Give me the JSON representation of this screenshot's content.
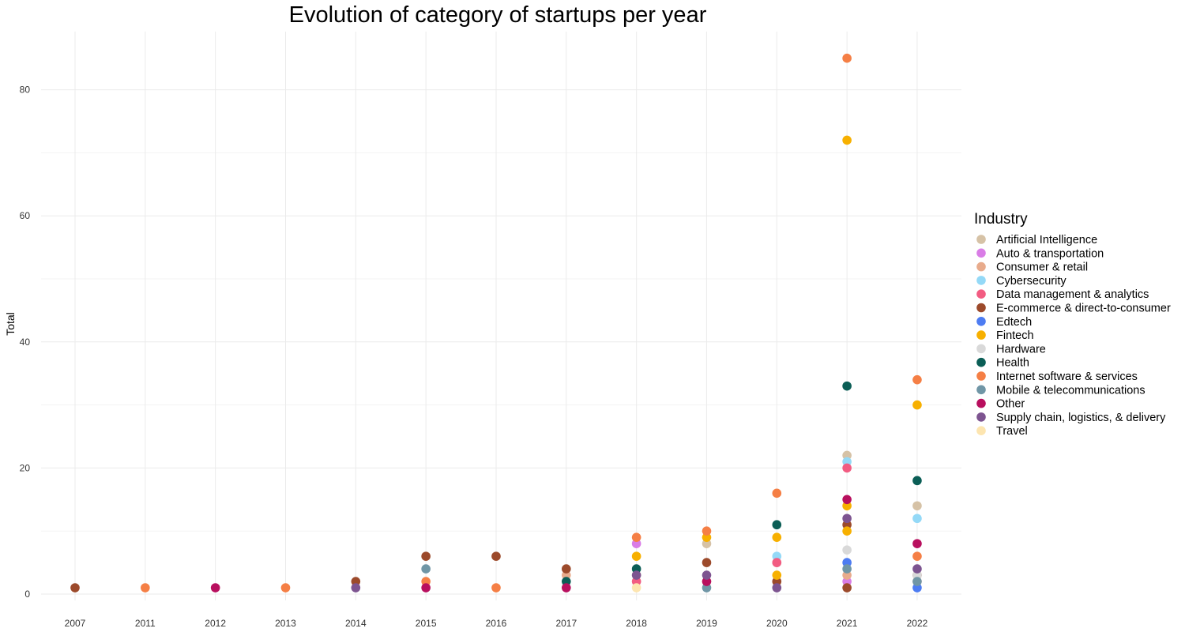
{
  "chart_data": {
    "type": "scatter",
    "title": "Evolution of category of startups per year",
    "xlabel": "",
    "ylabel": "Total",
    "categories": [
      "2007",
      "2011",
      "2012",
      "2013",
      "2014",
      "2015",
      "2016",
      "2017",
      "2018",
      "2019",
      "2020",
      "2021",
      "2022"
    ],
    "yticks": [
      0,
      20,
      40,
      60,
      80
    ],
    "ylim": [
      0,
      88
    ],
    "grid": true,
    "legend_title": "Industry",
    "legend_position": "right",
    "series": [
      {
        "name": "Artificial Intelligence",
        "color": "#d6c2a6",
        "points": [
          [
            "2018",
            2
          ],
          [
            "2019",
            8
          ],
          [
            "2020",
            5
          ],
          [
            "2021",
            22
          ],
          [
            "2022",
            14
          ]
        ]
      },
      {
        "name": "Auto & transportation",
        "color": "#d97de6",
        "points": [
          [
            "2018",
            8
          ],
          [
            "2021",
            2
          ]
        ]
      },
      {
        "name": "Consumer & retail",
        "color": "#e8ab8c",
        "points": [
          [
            "2017",
            3
          ],
          [
            "2018",
            3
          ],
          [
            "2019",
            2
          ],
          [
            "2020",
            2
          ],
          [
            "2021",
            3
          ],
          [
            "2022",
            2
          ]
        ]
      },
      {
        "name": "Cybersecurity",
        "color": "#94d9f7",
        "points": [
          [
            "2020",
            6
          ],
          [
            "2021",
            21
          ],
          [
            "2022",
            12
          ]
        ]
      },
      {
        "name": "Data management & analytics",
        "color": "#f25c82",
        "points": [
          [
            "2018",
            2
          ],
          [
            "2020",
            5
          ],
          [
            "2021",
            20
          ]
        ]
      },
      {
        "name": "E-commerce & direct-to-consumer",
        "color": "#9c4a2b",
        "points": [
          [
            "2007",
            1
          ],
          [
            "2014",
            2
          ],
          [
            "2015",
            6
          ],
          [
            "2016",
            6
          ],
          [
            "2017",
            4
          ],
          [
            "2019",
            5
          ],
          [
            "2020",
            2
          ],
          [
            "2021",
            11
          ],
          [
            "2021",
            1
          ],
          [
            "2022",
            3
          ]
        ]
      },
      {
        "name": "Edtech",
        "color": "#4d7cf2",
        "points": [
          [
            "2021",
            5
          ],
          [
            "2022",
            1
          ]
        ]
      },
      {
        "name": "Fintech",
        "color": "#f7b000",
        "points": [
          [
            "2018",
            6
          ],
          [
            "2019",
            9
          ],
          [
            "2020",
            9
          ],
          [
            "2020",
            3
          ],
          [
            "2021",
            72
          ],
          [
            "2021",
            14
          ],
          [
            "2021",
            10
          ],
          [
            "2022",
            30
          ]
        ]
      },
      {
        "name": "Hardware",
        "color": "#d9d9d9",
        "points": [
          [
            "2021",
            7
          ],
          [
            "2022",
            3
          ]
        ]
      },
      {
        "name": "Health",
        "color": "#0b5e56",
        "points": [
          [
            "2017",
            2
          ],
          [
            "2018",
            4
          ],
          [
            "2020",
            11
          ],
          [
            "2021",
            33
          ],
          [
            "2022",
            18
          ]
        ]
      },
      {
        "name": "Internet software & services",
        "color": "#f57f45",
        "points": [
          [
            "2011",
            1
          ],
          [
            "2013",
            1
          ],
          [
            "2015",
            2
          ],
          [
            "2016",
            1
          ],
          [
            "2018",
            9
          ],
          [
            "2019",
            10
          ],
          [
            "2020",
            16
          ],
          [
            "2021",
            85
          ],
          [
            "2022",
            34
          ],
          [
            "2022",
            6
          ]
        ]
      },
      {
        "name": "Mobile & telecommunications",
        "color": "#7096a6",
        "points": [
          [
            "2015",
            4
          ],
          [
            "2019",
            1
          ],
          [
            "2021",
            4
          ],
          [
            "2022",
            2
          ]
        ]
      },
      {
        "name": "Other",
        "color": "#b80f5e",
        "points": [
          [
            "2012",
            1
          ],
          [
            "2015",
            1
          ],
          [
            "2017",
            1
          ],
          [
            "2019",
            2
          ],
          [
            "2021",
            15
          ],
          [
            "2022",
            8
          ]
        ]
      },
      {
        "name": "Supply chain, logistics, & delivery",
        "color": "#7d5490",
        "points": [
          [
            "2014",
            1
          ],
          [
            "2018",
            3
          ],
          [
            "2019",
            3
          ],
          [
            "2020",
            1
          ],
          [
            "2021",
            12
          ],
          [
            "2022",
            4
          ]
        ]
      },
      {
        "name": "Travel",
        "color": "#fde5b0",
        "points": [
          [
            "2018",
            1
          ]
        ]
      }
    ]
  }
}
